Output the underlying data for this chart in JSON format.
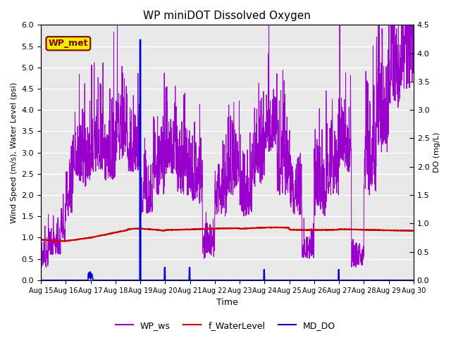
{
  "title": "WP miniDOT Dissolved Oxygen",
  "xlabel": "Time",
  "ylabel_left": "Wind Speed (m/s), Water Level (psi)",
  "ylabel_right": "DO (mg/L)",
  "ylim_left": [
    0.0,
    6.0
  ],
  "ylim_right": [
    0.0,
    4.5
  ],
  "bg_color": "#e8e8e8",
  "wp_ws_color": "#9900cc",
  "f_water_color": "#cc0000",
  "md_do_color": "#0000dd",
  "legend_box_facecolor": "#eeee00",
  "legend_box_edgecolor": "#880000",
  "legend_box_text": "WP_met",
  "grid_color": "white",
  "title_fontsize": 11,
  "axis_fontsize": 8,
  "legend_fontsize": 9
}
